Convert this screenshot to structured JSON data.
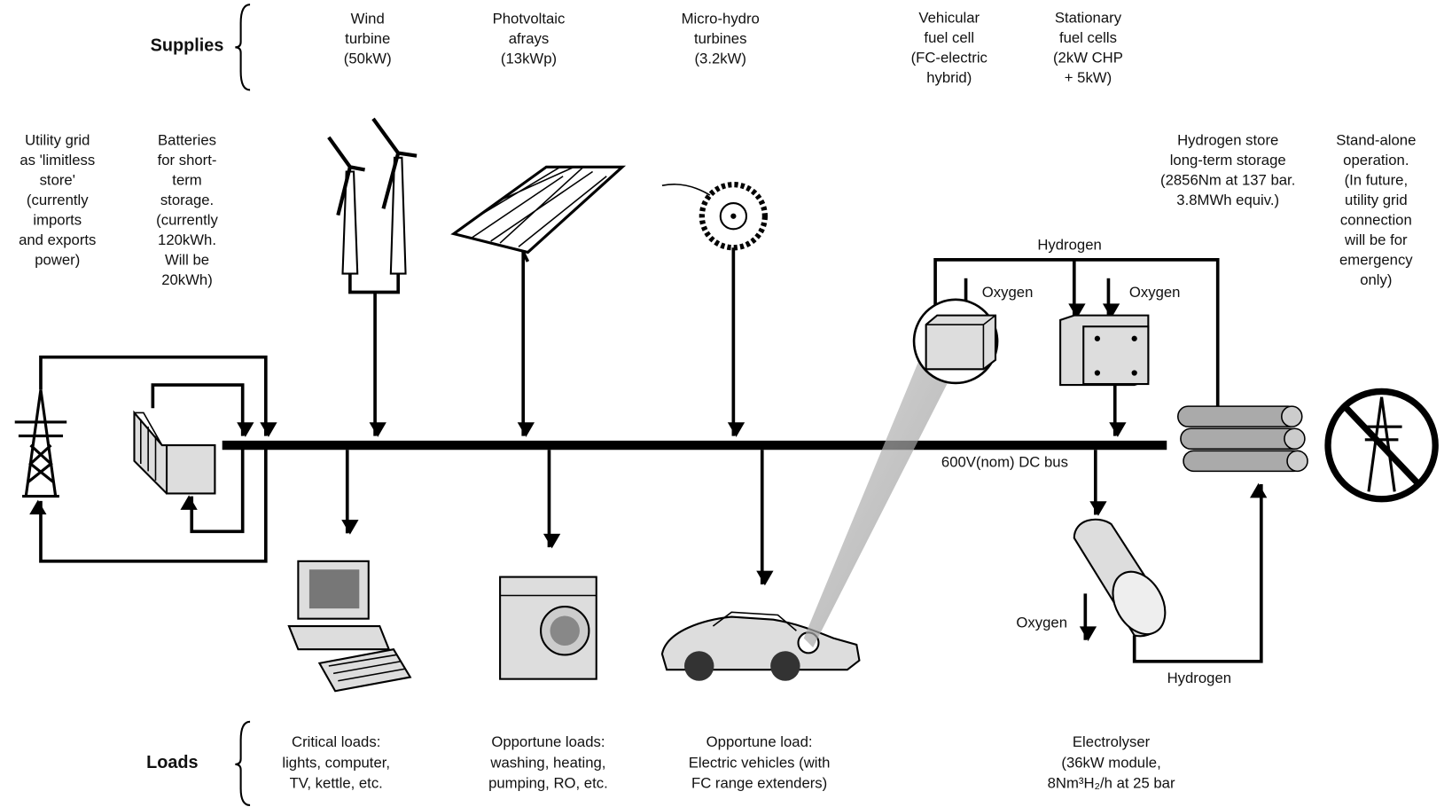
{
  "supplies": {
    "title": "Supplies",
    "items": [
      {
        "lines": [
          "Wind",
          "turbine",
          "(50kW)"
        ]
      },
      {
        "lines": [
          "Photvoltaic",
          "afrays",
          "(13kWp)"
        ]
      },
      {
        "lines": [
          "Micro-hydro",
          "turbines",
          "(3.2kW)"
        ]
      },
      {
        "lines": [
          "Vehicular",
          "fuel cell",
          "(FC-electric",
          "hybrid)"
        ]
      },
      {
        "lines": [
          "Stationary",
          "fuel cells",
          "(2kW CHP",
          "+ 5kW)"
        ]
      }
    ]
  },
  "notes": [
    {
      "lines": [
        "Utility grid",
        "as 'limitless",
        "store'",
        "(currently",
        "imports",
        "and exports",
        "power)"
      ]
    },
    {
      "lines": [
        "Batteries",
        "for short-",
        "term",
        "storage.",
        "(currently",
        "120kWh.",
        "Will be",
        "20kWh)"
      ]
    },
    {
      "lines": [
        "Hydrogen store",
        "long-term storage",
        "(2856Nm at 137 bar.",
        "3.8MWh equiv.)"
      ]
    },
    {
      "lines": [
        "Stand-alone",
        "operation.",
        "(In future,",
        "utility grid",
        "connection",
        "will be for",
        "emergency",
        "only)"
      ]
    }
  ],
  "flow_labels": [
    "Hydrogen",
    "Oxygen",
    "Oxygen",
    "600V(nom) DC bus",
    "Oxygen",
    "Hydrogen"
  ],
  "loads": {
    "title": "Loads",
    "items": [
      {
        "lines": [
          "Critical loads:",
          "lights, computer,",
          "TV, kettle, etc."
        ]
      },
      {
        "lines": [
          "Opportune loads:",
          "washing, heating,",
          "pumping, RO, etc."
        ]
      },
      {
        "lines": [
          "Opportune load:",
          "Electric vehicles (with",
          "FC range extenders)"
        ]
      },
      {
        "lines": [
          "Electrolyser",
          "(36kW module,",
          "8Nm³H₂/h at 25 bar"
        ]
      }
    ]
  }
}
